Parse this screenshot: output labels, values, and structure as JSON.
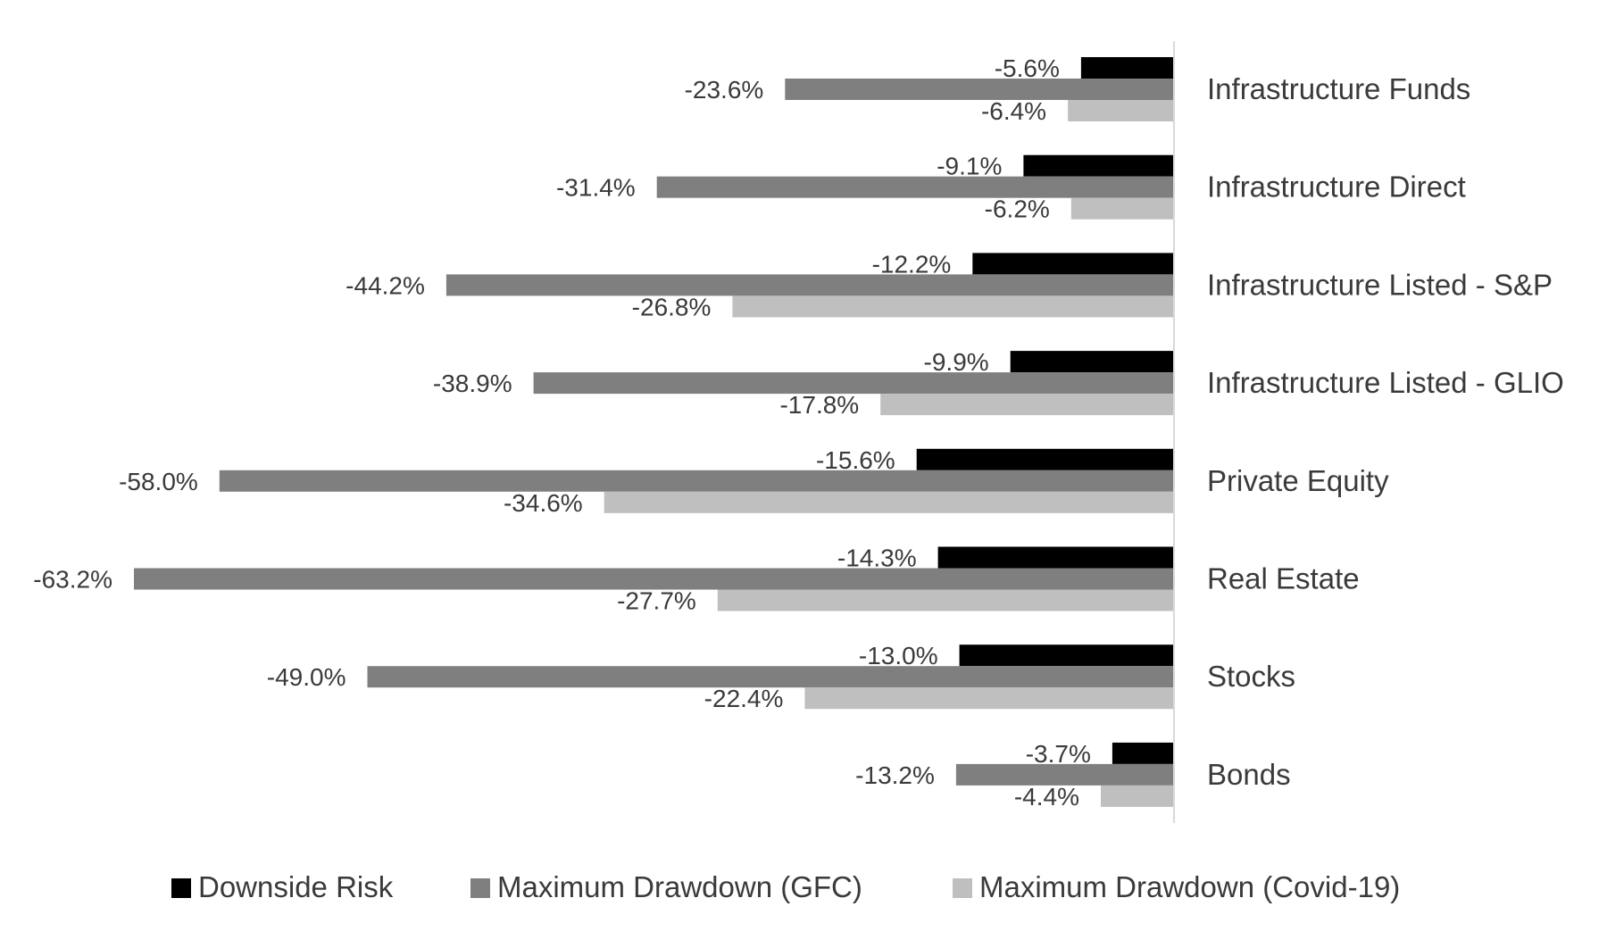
{
  "chart_data": {
    "type": "bar",
    "orientation": "horizontal",
    "direction": "negative values extend left from a vertical axis at zero",
    "category_label_position": "right of axis",
    "value_format": "{v}%",
    "categories": [
      "Infrastructure Funds",
      "Infrastructure Direct",
      "Infrastructure Listed - S&P",
      "Infrastructure Listed - GLIO",
      "Private Equity",
      "Real Estate",
      "Stocks",
      "Bonds"
    ],
    "series": [
      {
        "name": "Downside Risk",
        "color": "#000000",
        "values": [
          -5.6,
          -9.1,
          -12.2,
          -9.9,
          -15.6,
          -14.3,
          -13.0,
          -3.7
        ],
        "labels": [
          "-5.6%",
          "-9.1%",
          "-12.2%",
          "-9.9%",
          "-15.6%",
          "-14.3%",
          "-13.0%",
          "-3.7%"
        ]
      },
      {
        "name": "Maximum Drawdown (GFC)",
        "color": "#7f7f7f",
        "values": [
          -23.6,
          -31.4,
          -44.2,
          -38.9,
          -58.0,
          -63.2,
          -49.0,
          -13.2
        ],
        "labels": [
          "-23.6%",
          "-31.4%",
          "-44.2%",
          "-38.9%",
          "-58.0%",
          "-63.2%",
          "-49.0%",
          "-13.2%"
        ]
      },
      {
        "name": "Maximum Drawdown (Covid-19)",
        "color": "#bfbfbf",
        "values": [
          -6.4,
          -6.2,
          -26.8,
          -17.8,
          -34.6,
          -27.7,
          -22.4,
          -4.4
        ],
        "labels": [
          "-6.4%",
          "-6.2%",
          "-26.8%",
          "-17.8%",
          "-34.6%",
          "-27.7%",
          "-22.4%",
          "-4.4%"
        ]
      }
    ],
    "xlim": [
      -63.2,
      0
    ],
    "axis_color": "#d9d9d9",
    "grid": false,
    "legend": "bottom",
    "title": "",
    "xlabel": "",
    "ylabel": ""
  }
}
